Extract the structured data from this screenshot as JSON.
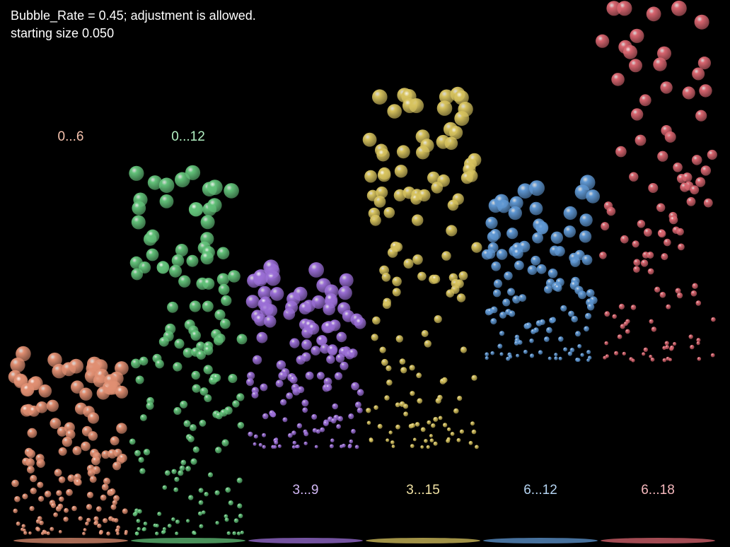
{
  "header": {
    "line1": "Bubble_Rate = 0.45; adjustment is allowed.",
    "line2": "starting size 0.050"
  },
  "chart_data": {
    "type": "scatter",
    "title": "Bubble_Rate = 0.45; adjustment is allowed.",
    "subtitle": "starting size 0.050",
    "bubble_rate": 0.45,
    "starting_size": 0.05,
    "groups": [
      {
        "label": "0...6",
        "min": 0,
        "max": 6,
        "color": "#e08f72",
        "label_color": "#f5c2ad",
        "count": 150,
        "label_position": "top"
      },
      {
        "label": "0...12",
        "min": 0,
        "max": 12,
        "color": "#63c27a",
        "label_color": "#b2f0c2",
        "count": 160,
        "label_position": "top"
      },
      {
        "label": "3...9",
        "min": 3,
        "max": 9,
        "color": "#9b6fd6",
        "label_color": "#d2b8f5",
        "count": 140,
        "label_position": "bottom"
      },
      {
        "label": "3...15",
        "min": 3,
        "max": 15,
        "color": "#d7c35f",
        "label_color": "#f2e3a5",
        "count": 140,
        "label_position": "bottom"
      },
      {
        "label": "6...12",
        "min": 6,
        "max": 12,
        "color": "#5f97d2",
        "label_color": "#b5d4f2",
        "count": 120,
        "label_position": "bottom"
      },
      {
        "label": "6...18",
        "min": 6,
        "max": 18,
        "color": "#d96670",
        "label_color": "#f5b8bd",
        "count": 110,
        "label_position": "bottom"
      }
    ]
  }
}
